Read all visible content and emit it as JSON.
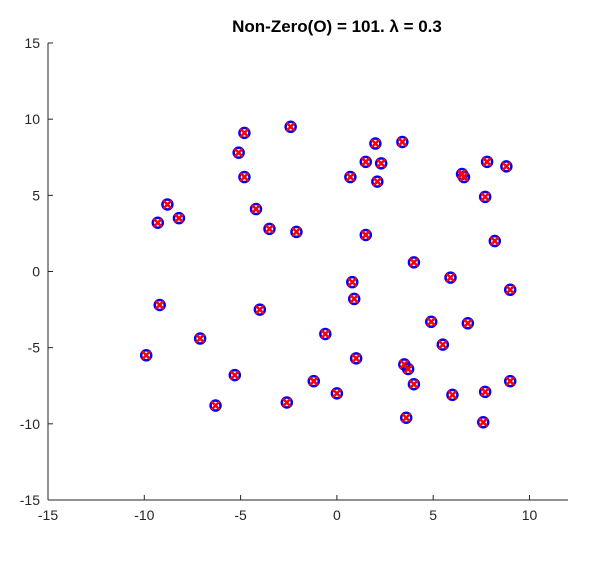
{
  "chart_data": {
    "type": "scatter",
    "title": "Non-Zero(O) = 101. λ = 0.3",
    "x": [
      -4.8,
      -2.4,
      -5.1,
      -4.8,
      -8.8,
      -8.2,
      -9.3,
      -4.2,
      -3.5,
      -2.1,
      0.7,
      1.5,
      2.0,
      2.3,
      2.1,
      3.4,
      1.5,
      6.5,
      6.6,
      7.8,
      8.8,
      7.7,
      8.2,
      4.0,
      5.9,
      9.0,
      0.8,
      0.9,
      -9.2,
      -4.0,
      -7.1,
      -9.9,
      -0.6,
      4.9,
      6.8,
      5.5,
      1.0,
      3.5,
      3.7,
      4.0,
      -5.3,
      -1.2,
      0.0,
      -2.6,
      -6.3,
      6.0,
      7.7,
      9.0,
      3.6,
      7.6
    ],
    "series": [
      {
        "marker": "o",
        "color": "#0000ff",
        "values": [
          9.1,
          9.5,
          7.8,
          6.2,
          4.4,
          3.5,
          3.2,
          4.1,
          2.8,
          2.6,
          6.2,
          7.2,
          8.4,
          7.1,
          5.9,
          8.5,
          2.4,
          6.4,
          6.2,
          7.2,
          6.9,
          4.9,
          2.0,
          0.6,
          -0.4,
          -1.2,
          -0.7,
          -1.8,
          -2.2,
          -2.5,
          -4.4,
          -5.5,
          -4.1,
          -3.3,
          -3.4,
          -4.8,
          -5.7,
          -6.1,
          -6.4,
          -7.4,
          -6.8,
          -7.2,
          -8.0,
          -8.6,
          -8.8,
          -8.1,
          -7.9,
          -7.2,
          -9.6,
          -9.9
        ]
      },
      {
        "marker": "x",
        "color": "#ff0000",
        "values": [
          9.1,
          9.5,
          7.8,
          6.2,
          4.4,
          3.5,
          3.2,
          4.1,
          2.8,
          2.6,
          6.2,
          7.2,
          8.4,
          7.1,
          5.9,
          8.5,
          2.4,
          6.4,
          6.2,
          7.2,
          6.9,
          4.9,
          2.0,
          0.6,
          -0.4,
          -1.2,
          -0.7,
          -1.8,
          -2.2,
          -2.5,
          -4.4,
          -5.5,
          -4.1,
          -3.3,
          -3.4,
          -4.8,
          -5.7,
          -6.1,
          -6.4,
          -7.4,
          -6.8,
          -7.2,
          -8.0,
          -8.6,
          -8.8,
          -8.1,
          -7.9,
          -7.2,
          -9.6,
          -9.9
        ]
      }
    ],
    "xlim": [
      -15,
      12
    ],
    "ylim": [
      -15,
      15
    ],
    "xticks": [
      -15,
      -10,
      -5,
      0,
      5,
      10
    ],
    "yticks": [
      -15,
      -10,
      -5,
      0,
      5,
      10,
      15
    ]
  }
}
